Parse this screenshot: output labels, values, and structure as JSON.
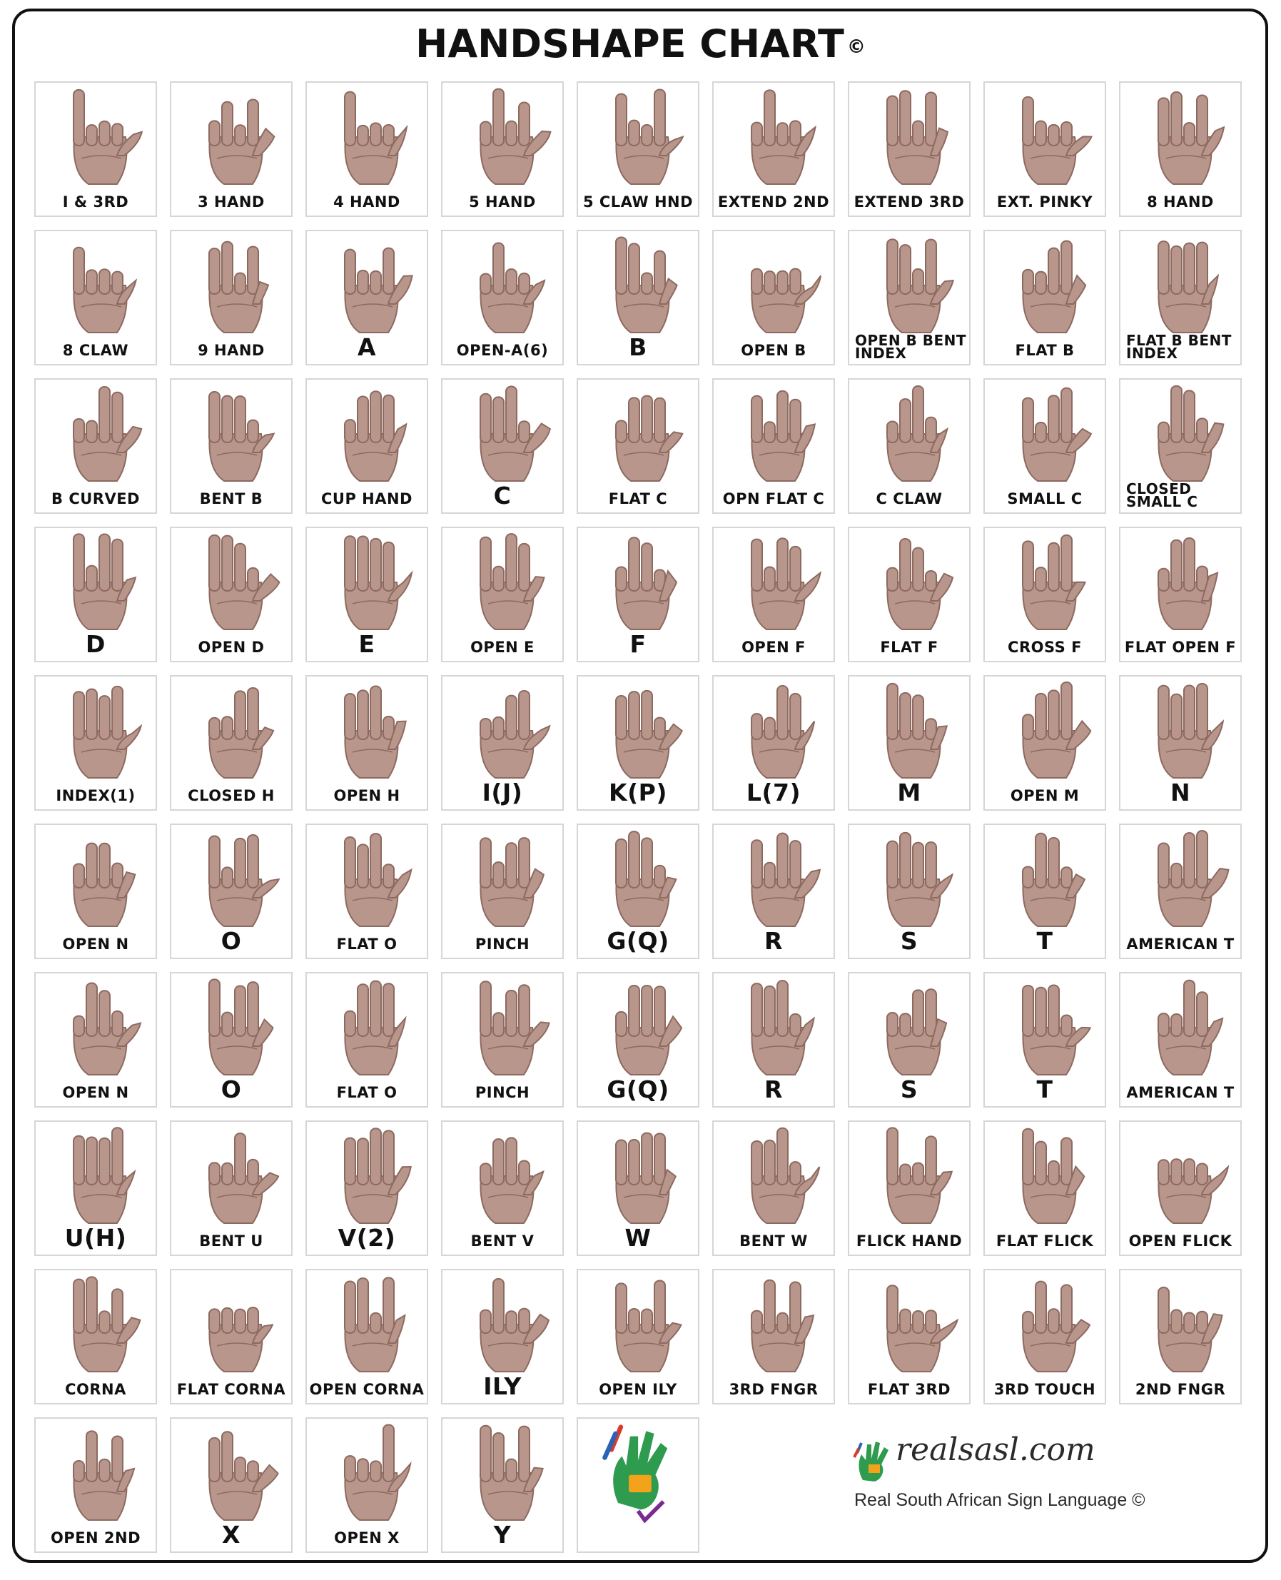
{
  "title": "HANDSHAPE CHART",
  "title_symbol": "©",
  "cells": [
    {
      "label": "I & 3RD"
    },
    {
      "label": "3 HAND"
    },
    {
      "label": "4 HAND"
    },
    {
      "label": "5 HAND"
    },
    {
      "label": "5 CLAW HND"
    },
    {
      "label": "EXTEND 2ND"
    },
    {
      "label": "EXTEND 3RD"
    },
    {
      "label": "EXT. PINKY"
    },
    {
      "label": "8 HAND"
    },
    {
      "label": "8 CLAW"
    },
    {
      "label": "9 HAND"
    },
    {
      "label": "A"
    },
    {
      "label": "OPEN-A(6)"
    },
    {
      "label": "B"
    },
    {
      "label": "OPEN B"
    },
    {
      "label": "OPEN B BENT INDEX"
    },
    {
      "label": "FLAT B"
    },
    {
      "label": "FLAT B BENT INDEX"
    },
    {
      "label": "B CURVED"
    },
    {
      "label": "BENT B"
    },
    {
      "label": "CUP HAND"
    },
    {
      "label": "C"
    },
    {
      "label": "FLAT C"
    },
    {
      "label": "OPN FLAT C"
    },
    {
      "label": "C CLAW"
    },
    {
      "label": "SMALL C"
    },
    {
      "label": "CLOSED SMALL C"
    },
    {
      "label": "D"
    },
    {
      "label": "OPEN D"
    },
    {
      "label": "E"
    },
    {
      "label": "OPEN E"
    },
    {
      "label": "F"
    },
    {
      "label": "OPEN F"
    },
    {
      "label": "FLAT F"
    },
    {
      "label": "CROSS F"
    },
    {
      "label": "FLAT OPEN F"
    },
    {
      "label": "INDEX(1)"
    },
    {
      "label": "CLOSED H"
    },
    {
      "label": "OPEN H"
    },
    {
      "label": "I(J)"
    },
    {
      "label": "K(P)"
    },
    {
      "label": "L(7)"
    },
    {
      "label": "M"
    },
    {
      "label": "OPEN M"
    },
    {
      "label": "N"
    },
    {
      "label": "OPEN N"
    },
    {
      "label": "O"
    },
    {
      "label": "FLAT O"
    },
    {
      "label": "PINCH"
    },
    {
      "label": "G(Q)"
    },
    {
      "label": "R"
    },
    {
      "label": "S"
    },
    {
      "label": "T"
    },
    {
      "label": "AMERICAN T"
    },
    {
      "label": "OPEN N"
    },
    {
      "label": "O"
    },
    {
      "label": "FLAT O"
    },
    {
      "label": "PINCH"
    },
    {
      "label": "G(Q)"
    },
    {
      "label": "R"
    },
    {
      "label": "S"
    },
    {
      "label": "T"
    },
    {
      "label": "AMERICAN T"
    },
    {
      "label": "U(H)"
    },
    {
      "label": "BENT U"
    },
    {
      "label": "V(2)"
    },
    {
      "label": "BENT V"
    },
    {
      "label": "W"
    },
    {
      "label": "BENT W"
    },
    {
      "label": "FLICK HAND"
    },
    {
      "label": "FLAT FLICK"
    },
    {
      "label": "OPEN FLICK"
    },
    {
      "label": "CORNA"
    },
    {
      "label": "FLAT CORNA"
    },
    {
      "label": "OPEN CORNA"
    },
    {
      "label": "ILY"
    },
    {
      "label": "OPEN ILY"
    },
    {
      "label": "3RD FNGR"
    },
    {
      "label": "FLAT 3RD"
    },
    {
      "label": "3RD TOUCH"
    },
    {
      "label": "2ND FNGR"
    },
    {
      "label": "OPEN 2ND"
    },
    {
      "label": "X"
    },
    {
      "label": "OPEN X"
    },
    {
      "label": "Y"
    },
    {
      "label": ""
    }
  ],
  "brand": {
    "name": "realsasl.com",
    "tagline": "Real South African Sign Language ©"
  },
  "colors": {
    "skin": "#b8968c",
    "skin_dark": "#8d6a60",
    "border": "#d6d6d6",
    "logo_green": "#2e9b4f",
    "logo_orange": "#f2a21b",
    "logo_red": "#d93a2b",
    "logo_blue": "#2a62b8",
    "logo_purple": "#7a2b8f"
  }
}
